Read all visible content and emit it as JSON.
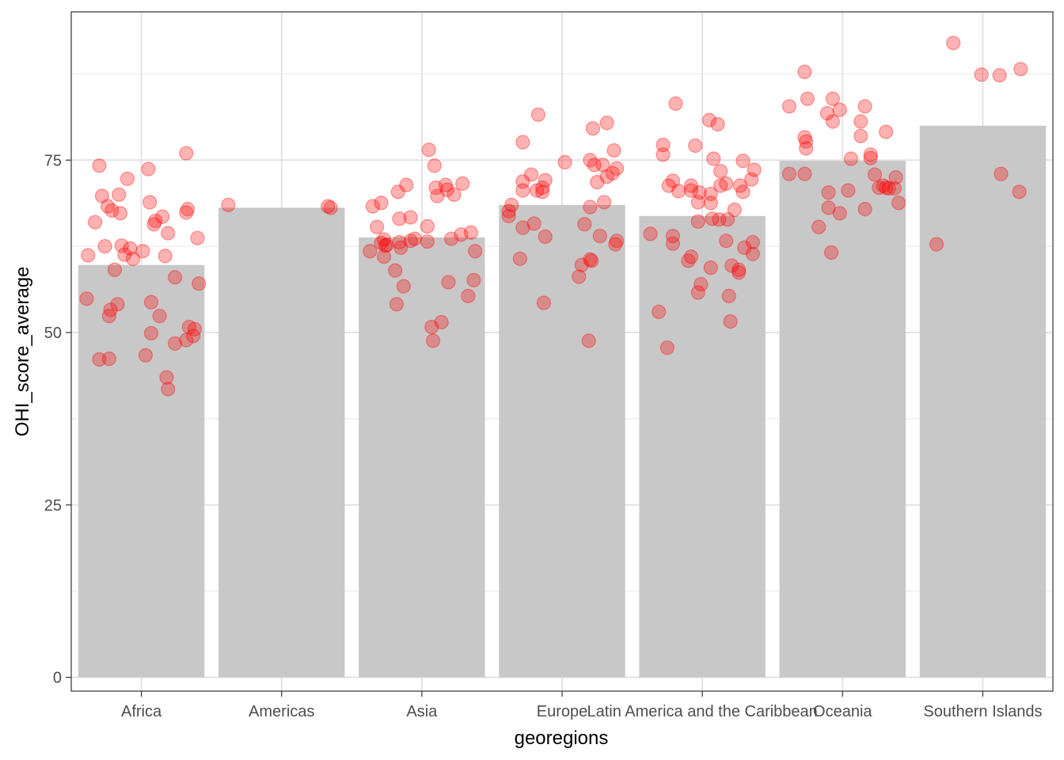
{
  "chart_data": {
    "type": "bar",
    "xlabel": "georegions",
    "ylabel": "OHI_score_average",
    "categories": [
      "Africa",
      "Americas",
      "Asia",
      "Europe",
      "Latin America and the Caribbean",
      "Oceania",
      "Southern Islands"
    ],
    "values": [
      59.8,
      68.1,
      63.8,
      68.5,
      66.9,
      74.9,
      80.0
    ],
    "ylim": [
      -2,
      96.5
    ],
    "yticks": [
      0,
      25,
      50,
      75
    ],
    "grid": true,
    "legend": "none",
    "bar_color": "#c8c8c8",
    "point_color": "#ff0000",
    "points": [
      [
        {
          "dx": -0.38,
          "y": 61.2
        },
        {
          "dx": -0.33,
          "y": 66.0
        },
        {
          "dx": -0.3,
          "y": 74.2
        },
        {
          "dx": -0.28,
          "y": 69.8
        },
        {
          "dx": -0.26,
          "y": 62.5
        },
        {
          "dx": -0.24,
          "y": 68.3
        },
        {
          "dx": -0.21,
          "y": 67.7
        },
        {
          "dx": -0.19,
          "y": 59.1
        },
        {
          "dx": -0.17,
          "y": 54.1
        },
        {
          "dx": -0.16,
          "y": 70.0
        },
        {
          "dx": -0.15,
          "y": 67.3
        },
        {
          "dx": -0.14,
          "y": 62.6
        },
        {
          "dx": -0.12,
          "y": 61.3
        },
        {
          "dx": -0.1,
          "y": 72.3
        },
        {
          "dx": -0.06,
          "y": 60.7
        },
        {
          "dx": -0.08,
          "y": 62.2
        },
        {
          "dx": 0.01,
          "y": 61.8
        },
        {
          "dx": 0.05,
          "y": 73.7
        },
        {
          "dx": 0.06,
          "y": 68.9
        },
        {
          "dx": 0.07,
          "y": 54.4
        },
        {
          "dx": 0.09,
          "y": 65.7
        },
        {
          "dx": 0.1,
          "y": 66.2
        },
        {
          "dx": 0.13,
          "y": 52.4
        },
        {
          "dx": 0.15,
          "y": 66.8
        },
        {
          "dx": 0.17,
          "y": 61.1
        },
        {
          "dx": 0.19,
          "y": 64.4
        },
        {
          "dx": 0.24,
          "y": 58.0
        },
        {
          "dx": 0.32,
          "y": 67.4
        },
        {
          "dx": 0.33,
          "y": 67.9
        },
        {
          "dx": 0.32,
          "y": 76.0
        },
        {
          "dx": 0.4,
          "y": 63.7
        },
        {
          "dx": 0.41,
          "y": 57.1
        },
        {
          "dx": -0.39,
          "y": 54.9
        },
        {
          "dx": -0.3,
          "y": 46.1
        },
        {
          "dx": -0.23,
          "y": 46.2
        },
        {
          "dx": -0.23,
          "y": 52.4
        },
        {
          "dx": -0.22,
          "y": 53.3
        },
        {
          "dx": 0.03,
          "y": 46.7
        },
        {
          "dx": 0.07,
          "y": 49.9
        },
        {
          "dx": 0.18,
          "y": 43.5
        },
        {
          "dx": 0.19,
          "y": 41.8
        },
        {
          "dx": 0.24,
          "y": 48.4
        },
        {
          "dx": 0.32,
          "y": 48.9
        },
        {
          "dx": 0.34,
          "y": 50.8
        },
        {
          "dx": 0.37,
          "y": 49.5
        },
        {
          "dx": 0.38,
          "y": 50.5
        }
      ],
      [
        {
          "dx": -0.38,
          "y": 68.5
        },
        {
          "dx": 0.33,
          "y": 68.3
        },
        {
          "dx": 0.35,
          "y": 68.1
        }
      ],
      [
        {
          "dx": -0.37,
          "y": 61.8
        },
        {
          "dx": -0.35,
          "y": 68.3
        },
        {
          "dx": -0.32,
          "y": 65.3
        },
        {
          "dx": -0.29,
          "y": 68.8
        },
        {
          "dx": -0.29,
          "y": 63.0
        },
        {
          "dx": -0.27,
          "y": 63.5
        },
        {
          "dx": -0.27,
          "y": 61.0
        },
        {
          "dx": -0.25,
          "y": 62.7
        },
        {
          "dx": -0.19,
          "y": 59.0
        },
        {
          "dx": -0.18,
          "y": 54.1
        },
        {
          "dx": -0.17,
          "y": 70.4
        },
        {
          "dx": -0.16,
          "y": 66.5
        },
        {
          "dx": -0.16,
          "y": 63.1
        },
        {
          "dx": -0.13,
          "y": 56.7
        },
        {
          "dx": -0.11,
          "y": 71.4
        },
        {
          "dx": -0.08,
          "y": 66.7
        },
        {
          "dx": -0.08,
          "y": 63.3
        },
        {
          "dx": -0.05,
          "y": 63.6
        },
        {
          "dx": 0.05,
          "y": 76.5
        },
        {
          "dx": 0.04,
          "y": 65.4
        },
        {
          "dx": 0.04,
          "y": 63.2
        },
        {
          "dx": 0.07,
          "y": 50.8
        },
        {
          "dx": 0.08,
          "y": 48.8
        },
        {
          "dx": 0.09,
          "y": 74.2
        },
        {
          "dx": 0.1,
          "y": 71.0
        },
        {
          "dx": 0.11,
          "y": 69.8
        },
        {
          "dx": 0.14,
          "y": 51.5
        },
        {
          "dx": 0.17,
          "y": 71.4
        },
        {
          "dx": 0.18,
          "y": 70.7
        },
        {
          "dx": 0.19,
          "y": 57.3
        },
        {
          "dx": 0.21,
          "y": 63.6
        },
        {
          "dx": 0.23,
          "y": 70.0
        },
        {
          "dx": 0.28,
          "y": 64.2
        },
        {
          "dx": 0.29,
          "y": 71.6
        },
        {
          "dx": 0.33,
          "y": 55.3
        },
        {
          "dx": 0.35,
          "y": 64.5
        },
        {
          "dx": 0.37,
          "y": 57.6
        },
        {
          "dx": 0.38,
          "y": 61.8
        },
        {
          "dx": -0.26,
          "y": 62.6
        },
        {
          "dx": -0.15,
          "y": 62.3
        }
      ],
      [
        {
          "dx": -0.38,
          "y": 67.6
        },
        {
          "dx": -0.38,
          "y": 66.9
        },
        {
          "dx": -0.36,
          "y": 68.5
        },
        {
          "dx": -0.3,
          "y": 60.7
        },
        {
          "dx": -0.28,
          "y": 77.6
        },
        {
          "dx": -0.28,
          "y": 70.6
        },
        {
          "dx": -0.28,
          "y": 71.9
        },
        {
          "dx": -0.28,
          "y": 65.2
        },
        {
          "dx": -0.22,
          "y": 72.9
        },
        {
          "dx": -0.2,
          "y": 65.8
        },
        {
          "dx": -0.18,
          "y": 70.6
        },
        {
          "dx": -0.17,
          "y": 81.6
        },
        {
          "dx": -0.14,
          "y": 71.0
        },
        {
          "dx": -0.14,
          "y": 70.4
        },
        {
          "dx": -0.12,
          "y": 72.1
        },
        {
          "dx": -0.12,
          "y": 63.9
        },
        {
          "dx": -0.13,
          "y": 54.3
        },
        {
          "dx": 0.02,
          "y": 74.7
        },
        {
          "dx": 0.12,
          "y": 58.1
        },
        {
          "dx": 0.14,
          "y": 59.8
        },
        {
          "dx": 0.16,
          "y": 65.7
        },
        {
          "dx": 0.19,
          "y": 48.8
        },
        {
          "dx": 0.2,
          "y": 75.0
        },
        {
          "dx": 0.2,
          "y": 68.2
        },
        {
          "dx": 0.2,
          "y": 60.6
        },
        {
          "dx": 0.21,
          "y": 60.4
        },
        {
          "dx": 0.22,
          "y": 79.6
        },
        {
          "dx": 0.23,
          "y": 74.3
        },
        {
          "dx": 0.25,
          "y": 71.8
        },
        {
          "dx": 0.27,
          "y": 64.0
        },
        {
          "dx": 0.29,
          "y": 74.3
        },
        {
          "dx": 0.3,
          "y": 68.9
        },
        {
          "dx": 0.32,
          "y": 72.6
        },
        {
          "dx": 0.32,
          "y": 80.4
        },
        {
          "dx": 0.36,
          "y": 73.1
        },
        {
          "dx": 0.37,
          "y": 76.4
        },
        {
          "dx": 0.38,
          "y": 62.8
        },
        {
          "dx": 0.39,
          "y": 73.8
        },
        {
          "dx": 0.39,
          "y": 63.3
        }
      ],
      [
        {
          "dx": -0.37,
          "y": 64.3
        },
        {
          "dx": -0.31,
          "y": 53.0
        },
        {
          "dx": -0.28,
          "y": 77.2
        },
        {
          "dx": -0.28,
          "y": 75.8
        },
        {
          "dx": -0.25,
          "y": 47.8
        },
        {
          "dx": -0.24,
          "y": 71.3
        },
        {
          "dx": -0.21,
          "y": 72.0
        },
        {
          "dx": -0.21,
          "y": 64.0
        },
        {
          "dx": -0.21,
          "y": 62.9
        },
        {
          "dx": -0.19,
          "y": 83.2
        },
        {
          "dx": -0.17,
          "y": 70.5
        },
        {
          "dx": -0.1,
          "y": 60.4
        },
        {
          "dx": -0.08,
          "y": 71.3
        },
        {
          "dx": -0.08,
          "y": 70.6
        },
        {
          "dx": -0.08,
          "y": 61.0
        },
        {
          "dx": -0.05,
          "y": 77.1
        },
        {
          "dx": -0.03,
          "y": 68.9
        },
        {
          "dx": -0.02,
          "y": 70.3
        },
        {
          "dx": -0.03,
          "y": 66.1
        },
        {
          "dx": -0.01,
          "y": 57.0
        },
        {
          "dx": -0.03,
          "y": 55.8
        },
        {
          "dx": 0.05,
          "y": 80.8
        },
        {
          "dx": 0.06,
          "y": 70.1
        },
        {
          "dx": 0.06,
          "y": 68.8
        },
        {
          "dx": 0.06,
          "y": 59.4
        },
        {
          "dx": 0.07,
          "y": 66.5
        },
        {
          "dx": 0.08,
          "y": 75.2
        },
        {
          "dx": 0.11,
          "y": 80.2
        },
        {
          "dx": 0.12,
          "y": 66.4
        },
        {
          "dx": 0.13,
          "y": 73.4
        },
        {
          "dx": 0.13,
          "y": 71.3
        },
        {
          "dx": 0.17,
          "y": 63.3
        },
        {
          "dx": 0.17,
          "y": 71.6
        },
        {
          "dx": 0.18,
          "y": 66.4
        },
        {
          "dx": 0.19,
          "y": 55.3
        },
        {
          "dx": 0.2,
          "y": 51.6
        },
        {
          "dx": 0.21,
          "y": 59.7
        },
        {
          "dx": 0.23,
          "y": 67.8
        },
        {
          "dx": 0.26,
          "y": 58.7
        },
        {
          "dx": 0.27,
          "y": 71.3
        },
        {
          "dx": 0.29,
          "y": 74.9
        },
        {
          "dx": 0.29,
          "y": 70.4
        },
        {
          "dx": 0.3,
          "y": 62.3
        },
        {
          "dx": 0.35,
          "y": 72.2
        },
        {
          "dx": 0.36,
          "y": 61.4
        },
        {
          "dx": 0.36,
          "y": 63.1
        },
        {
          "dx": 0.37,
          "y": 73.6
        },
        {
          "dx": 0.26,
          "y": 59.1
        }
      ],
      [
        {
          "dx": -0.38,
          "y": 82.8
        },
        {
          "dx": -0.38,
          "y": 73.0
        },
        {
          "dx": -0.27,
          "y": 73.0
        },
        {
          "dx": -0.27,
          "y": 87.8
        },
        {
          "dx": -0.27,
          "y": 78.3
        },
        {
          "dx": -0.26,
          "y": 77.7
        },
        {
          "dx": -0.26,
          "y": 76.7
        },
        {
          "dx": -0.25,
          "y": 83.9
        },
        {
          "dx": -0.17,
          "y": 65.3
        },
        {
          "dx": -0.11,
          "y": 81.8
        },
        {
          "dx": -0.1,
          "y": 70.3
        },
        {
          "dx": -0.1,
          "y": 68.1
        },
        {
          "dx": -0.08,
          "y": 61.6
        },
        {
          "dx": -0.07,
          "y": 83.9
        },
        {
          "dx": -0.07,
          "y": 80.6
        },
        {
          "dx": -0.02,
          "y": 82.3
        },
        {
          "dx": -0.02,
          "y": 67.3
        },
        {
          "dx": 0.04,
          "y": 70.6
        },
        {
          "dx": 0.06,
          "y": 75.2
        },
        {
          "dx": 0.13,
          "y": 80.6
        },
        {
          "dx": 0.13,
          "y": 78.5
        },
        {
          "dx": 0.16,
          "y": 82.8
        },
        {
          "dx": 0.16,
          "y": 67.9
        },
        {
          "dx": 0.2,
          "y": 75.8
        },
        {
          "dx": 0.2,
          "y": 75.3
        },
        {
          "dx": 0.23,
          "y": 72.9
        },
        {
          "dx": 0.26,
          "y": 71.0
        },
        {
          "dx": 0.29,
          "y": 71.3
        },
        {
          "dx": 0.31,
          "y": 71.0
        },
        {
          "dx": 0.33,
          "y": 70.9
        },
        {
          "dx": 0.31,
          "y": 79.1
        },
        {
          "dx": 0.37,
          "y": 70.9
        },
        {
          "dx": 0.38,
          "y": 72.5
        },
        {
          "dx": 0.4,
          "y": 68.8
        }
      ],
      [
        {
          "dx": -0.33,
          "y": 62.8
        },
        {
          "dx": -0.21,
          "y": 92.0
        },
        {
          "dx": -0.01,
          "y": 87.4
        },
        {
          "dx": 0.12,
          "y": 87.3
        },
        {
          "dx": 0.13,
          "y": 73.0
        },
        {
          "dx": 0.27,
          "y": 88.2
        },
        {
          "dx": 0.26,
          "y": 70.4
        }
      ]
    ]
  }
}
